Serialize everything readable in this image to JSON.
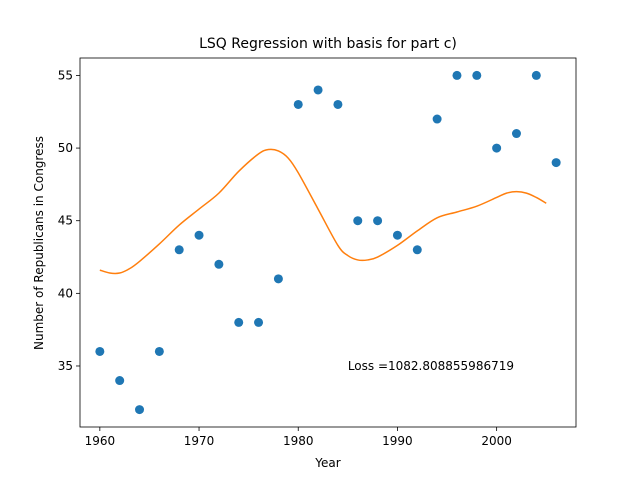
{
  "chart_data": {
    "type": "scatter",
    "title": "LSQ Regression with basis for part c)",
    "xlabel": "Year",
    "ylabel": "Number of Republicans in Congress",
    "xlim": [
      1958,
      2008
    ],
    "ylim": [
      30.8,
      56.2
    ],
    "xticks": [
      1960,
      1970,
      1980,
      1990,
      2000
    ],
    "yticks": [
      35,
      40,
      45,
      50,
      55
    ],
    "grid": false,
    "series": [
      {
        "name": "data",
        "kind": "scatter",
        "color": "#1f77b4",
        "x": [
          1960,
          1962,
          1964,
          1966,
          1968,
          1970,
          1972,
          1974,
          1976,
          1978,
          1980,
          1982,
          1984,
          1986,
          1988,
          1990,
          1992,
          1994,
          1996,
          1998,
          2000,
          2002,
          2004,
          2006
        ],
        "y": [
          36,
          34,
          32,
          36,
          43,
          44,
          42,
          38,
          38,
          41,
          53,
          54,
          53,
          45,
          45,
          44,
          43,
          52,
          55,
          55,
          50,
          51,
          55,
          49
        ]
      },
      {
        "name": "regression fit",
        "kind": "line",
        "color": "#ff7f0e",
        "x": [
          1960,
          1961,
          1962,
          1963,
          1964,
          1966,
          1968,
          1970,
          1972,
          1974,
          1976,
          1977,
          1978,
          1979,
          1980,
          1982,
          1984,
          1985,
          1986,
          1987,
          1988,
          1990,
          1992,
          1994,
          1996,
          1998,
          2000,
          2001,
          2002,
          2003,
          2004,
          2005
        ],
        "y": [
          41.6,
          41.4,
          41.4,
          41.7,
          42.2,
          43.4,
          44.7,
          45.8,
          46.9,
          48.4,
          49.6,
          49.9,
          49.8,
          49.3,
          48.3,
          45.8,
          43.3,
          42.6,
          42.3,
          42.3,
          42.5,
          43.3,
          44.3,
          45.2,
          45.6,
          46.0,
          46.6,
          46.9,
          47.0,
          46.9,
          46.6,
          46.2
        ]
      }
    ],
    "annotations": [
      {
        "text": "Loss =1082.808855986719",
        "x": 1985,
        "y": 35
      }
    ]
  }
}
